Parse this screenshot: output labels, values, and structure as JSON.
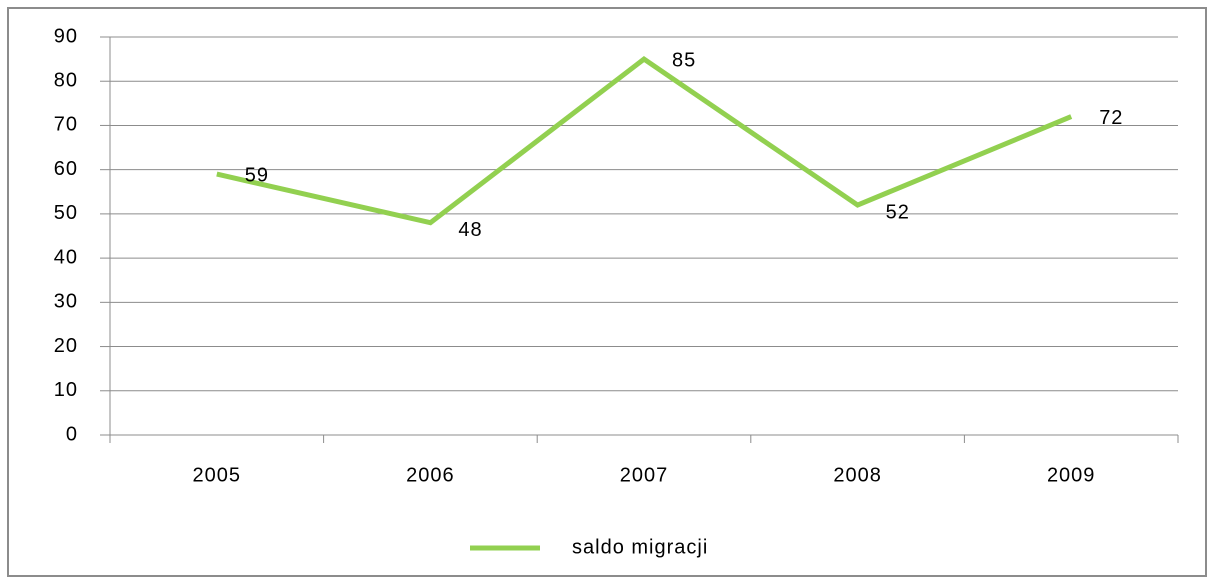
{
  "chart_data": {
    "type": "line",
    "categories": [
      "2005",
      "2006",
      "2007",
      "2008",
      "2009"
    ],
    "series": [
      {
        "name": "saldo migracji",
        "color": "#92d050",
        "values": [
          59,
          48,
          85,
          52,
          72
        ]
      }
    ],
    "ylim": [
      0,
      90
    ],
    "yticks": [
      0,
      10,
      20,
      30,
      40,
      50,
      60,
      70,
      80,
      90
    ],
    "grid": true,
    "legend": "bottom"
  }
}
